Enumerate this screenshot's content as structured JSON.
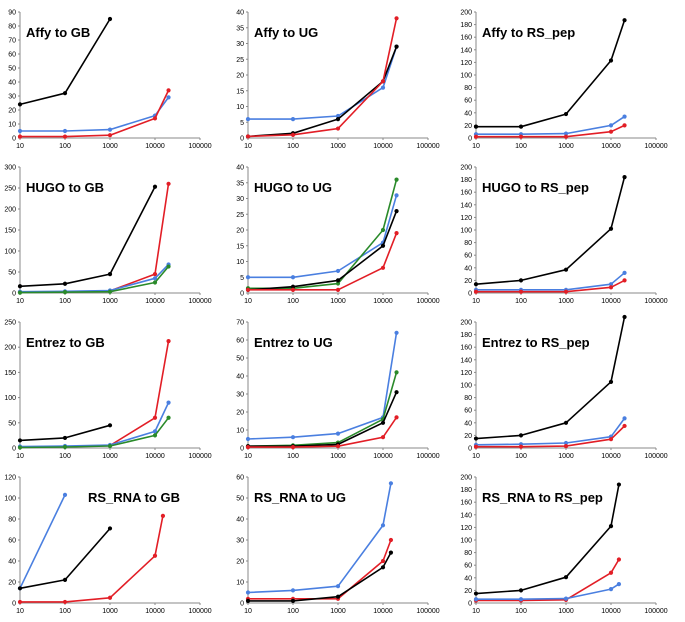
{
  "colors": {
    "black": "#000000",
    "blue": "#4a7fe0",
    "red": "#e21e26",
    "green": "#2a8a2a"
  },
  "chart_data": [
    {
      "type": "line",
      "title": "Affy to GB",
      "xscale": "log",
      "xlim": [
        10,
        100000
      ],
      "ylim": [
        0,
        90
      ],
      "xticks": [
        "10",
        "100",
        "1000",
        "10000",
        "100000"
      ],
      "yticks": [
        "0",
        "10",
        "20",
        "30",
        "40",
        "50",
        "60",
        "70",
        "80",
        "90"
      ],
      "title_pos": "top-left",
      "series": [
        {
          "name": "black",
          "color": "#000000",
          "x": [
            10,
            100,
            1000
          ],
          "y": [
            24,
            32,
            85
          ]
        },
        {
          "name": "blue",
          "color": "#4a7fe0",
          "x": [
            10,
            100,
            1000,
            10000,
            20000
          ],
          "y": [
            5,
            5,
            6,
            16,
            29
          ]
        },
        {
          "name": "red",
          "color": "#e21e26",
          "x": [
            10,
            100,
            1000,
            10000,
            20000
          ],
          "y": [
            1,
            1,
            2,
            14,
            34
          ]
        }
      ]
    },
    {
      "type": "line",
      "title": "Affy to UG",
      "xscale": "log",
      "xlim": [
        10,
        100000
      ],
      "ylim": [
        0,
        40
      ],
      "xticks": [
        "10",
        "100",
        "1000",
        "10000",
        "100000"
      ],
      "yticks": [
        "0",
        "5",
        "10",
        "15",
        "20",
        "25",
        "30",
        "35",
        "40"
      ],
      "title_pos": "top-left",
      "series": [
        {
          "name": "blue",
          "color": "#4a7fe0",
          "x": [
            10,
            100,
            1000,
            10000,
            20000
          ],
          "y": [
            6,
            6,
            7,
            16,
            29
          ]
        },
        {
          "name": "black",
          "color": "#000000",
          "x": [
            10,
            100,
            1000,
            10000,
            20000
          ],
          "y": [
            0.5,
            1.5,
            6,
            18,
            29
          ]
        },
        {
          "name": "red",
          "color": "#e21e26",
          "x": [
            10,
            100,
            1000,
            10000,
            20000
          ],
          "y": [
            0.5,
            1,
            3,
            18,
            38
          ]
        }
      ]
    },
    {
      "type": "line",
      "title": "Affy to RS_pep",
      "xscale": "log",
      "xlim": [
        10,
        100000
      ],
      "ylim": [
        0,
        200
      ],
      "xticks": [
        "10",
        "100",
        "1000",
        "10000",
        "100000"
      ],
      "yticks": [
        "0",
        "20",
        "40",
        "60",
        "80",
        "100",
        "120",
        "140",
        "160",
        "180",
        "200"
      ],
      "title_pos": "top-left",
      "series": [
        {
          "name": "black",
          "color": "#000000",
          "x": [
            10,
            100,
            1000,
            10000,
            20000
          ],
          "y": [
            18,
            18,
            38,
            123,
            187
          ]
        },
        {
          "name": "blue",
          "color": "#4a7fe0",
          "x": [
            10,
            100,
            1000,
            10000,
            20000
          ],
          "y": [
            6,
            6,
            7,
            20,
            34
          ]
        },
        {
          "name": "red",
          "color": "#e21e26",
          "x": [
            10,
            100,
            1000,
            10000,
            20000
          ],
          "y": [
            2,
            2,
            2,
            10,
            20
          ]
        }
      ]
    },
    {
      "type": "line",
      "title": "HUGO to GB",
      "xscale": "log",
      "xlim": [
        10,
        100000
      ],
      "ylim": [
        0,
        300
      ],
      "xticks": [
        "10",
        "100",
        "1000",
        "10000",
        "100000"
      ],
      "yticks": [
        "0",
        "50",
        "100",
        "150",
        "200",
        "250",
        "300"
      ],
      "title_pos": "top-left",
      "series": [
        {
          "name": "black",
          "color": "#000000",
          "x": [
            10,
            100,
            1000,
            10000
          ],
          "y": [
            16,
            22,
            45,
            253
          ]
        },
        {
          "name": "red",
          "color": "#e21e26",
          "x": [
            10,
            100,
            1000,
            10000,
            20000
          ],
          "y": [
            2,
            3,
            5,
            45,
            260
          ]
        },
        {
          "name": "blue",
          "color": "#4a7fe0",
          "x": [
            10,
            100,
            1000,
            10000,
            20000
          ],
          "y": [
            3,
            4,
            6,
            35,
            68
          ]
        },
        {
          "name": "green",
          "color": "#2a8a2a",
          "x": [
            10,
            100,
            1000,
            10000,
            20000
          ],
          "y": [
            1,
            2,
            3,
            25,
            63
          ]
        }
      ]
    },
    {
      "type": "line",
      "title": "HUGO to UG",
      "xscale": "log",
      "xlim": [
        10,
        100000
      ],
      "ylim": [
        0,
        40
      ],
      "xticks": [
        "10",
        "100",
        "1000",
        "10000",
        "100000"
      ],
      "yticks": [
        "0",
        "5",
        "10",
        "15",
        "20",
        "25",
        "30",
        "35",
        "40"
      ],
      "title_pos": "top-left",
      "series": [
        {
          "name": "blue",
          "color": "#4a7fe0",
          "x": [
            10,
            100,
            1000,
            10000,
            20000
          ],
          "y": [
            5,
            5,
            7,
            16,
            31
          ]
        },
        {
          "name": "green",
          "color": "#2a8a2a",
          "x": [
            10,
            100,
            1000,
            10000,
            20000
          ],
          "y": [
            1.5,
            1.5,
            3,
            20,
            36
          ]
        },
        {
          "name": "black",
          "color": "#000000",
          "x": [
            10,
            100,
            1000,
            10000,
            20000
          ],
          "y": [
            1,
            2,
            4,
            15,
            26
          ]
        },
        {
          "name": "red",
          "color": "#e21e26",
          "x": [
            10,
            100,
            1000,
            10000,
            20000
          ],
          "y": [
            1,
            1,
            1,
            8,
            19
          ]
        }
      ]
    },
    {
      "type": "line",
      "title": "HUGO to RS_pep",
      "xscale": "log",
      "xlim": [
        10,
        100000
      ],
      "ylim": [
        0,
        200
      ],
      "xticks": [
        "10",
        "100",
        "1000",
        "10000",
        "100000"
      ],
      "yticks": [
        "0",
        "20",
        "40",
        "60",
        "80",
        "100",
        "120",
        "140",
        "160",
        "180",
        "200"
      ],
      "title_pos": "top-left",
      "series": [
        {
          "name": "black",
          "color": "#000000",
          "x": [
            10,
            100,
            1000,
            10000,
            20000
          ],
          "y": [
            14,
            20,
            37,
            102,
            184
          ]
        },
        {
          "name": "blue",
          "color": "#4a7fe0",
          "x": [
            10,
            100,
            1000,
            10000,
            20000
          ],
          "y": [
            5,
            5,
            5,
            14,
            32
          ]
        },
        {
          "name": "red",
          "color": "#e21e26",
          "x": [
            10,
            100,
            1000,
            10000,
            20000
          ],
          "y": [
            2,
            2,
            2,
            9,
            20
          ]
        }
      ]
    },
    {
      "type": "line",
      "title": "Entrez to GB",
      "xscale": "log",
      "xlim": [
        10,
        100000
      ],
      "ylim": [
        0,
        250
      ],
      "xticks": [
        "10",
        "100",
        "1000",
        "10000",
        "100000"
      ],
      "yticks": [
        "0",
        "50",
        "100",
        "150",
        "200",
        "250"
      ],
      "title_pos": "top-left",
      "series": [
        {
          "name": "black",
          "color": "#000000",
          "x": [
            10,
            100,
            1000
          ],
          "y": [
            15,
            20,
            45
          ]
        },
        {
          "name": "red",
          "color": "#e21e26",
          "x": [
            10,
            100,
            1000,
            10000,
            20000
          ],
          "y": [
            2,
            3,
            5,
            60,
            212
          ]
        },
        {
          "name": "blue",
          "color": "#4a7fe0",
          "x": [
            10,
            100,
            1000,
            10000,
            20000
          ],
          "y": [
            3,
            4,
            6,
            33,
            90
          ]
        },
        {
          "name": "green",
          "color": "#2a8a2a",
          "x": [
            10,
            100,
            1000,
            10000,
            20000
          ],
          "y": [
            1,
            2,
            4,
            25,
            60
          ]
        }
      ]
    },
    {
      "type": "line",
      "title": "Entrez to UG",
      "xscale": "log",
      "xlim": [
        10,
        100000
      ],
      "ylim": [
        0,
        70
      ],
      "xticks": [
        "10",
        "100",
        "1000",
        "10000",
        "100000"
      ],
      "yticks": [
        "0",
        "10",
        "20",
        "30",
        "40",
        "50",
        "60",
        "70"
      ],
      "title_pos": "top-left",
      "series": [
        {
          "name": "blue",
          "color": "#4a7fe0",
          "x": [
            10,
            100,
            1000,
            10000,
            20000
          ],
          "y": [
            5,
            6,
            8,
            17,
            64
          ]
        },
        {
          "name": "green",
          "color": "#2a8a2a",
          "x": [
            10,
            100,
            1000,
            10000,
            20000
          ],
          "y": [
            1,
            1.5,
            3,
            16,
            42
          ]
        },
        {
          "name": "black",
          "color": "#000000",
          "x": [
            10,
            100,
            1000,
            10000,
            20000
          ],
          "y": [
            1,
            1,
            2,
            14,
            31
          ]
        },
        {
          "name": "red",
          "color": "#e21e26",
          "x": [
            10,
            100,
            1000,
            10000,
            20000
          ],
          "y": [
            0.5,
            0.5,
            1,
            6,
            17
          ]
        }
      ]
    },
    {
      "type": "line",
      "title": "Entrez to RS_pep",
      "xscale": "log",
      "xlim": [
        10,
        100000
      ],
      "ylim": [
        0,
        200
      ],
      "xticks": [
        "10",
        "100",
        "1000",
        "10000",
        "100000"
      ],
      "yticks": [
        "0",
        "20",
        "40",
        "60",
        "80",
        "100",
        "120",
        "140",
        "160",
        "180",
        "200"
      ],
      "title_pos": "top-left",
      "series": [
        {
          "name": "black",
          "color": "#000000",
          "x": [
            10,
            100,
            1000,
            10000,
            20000
          ],
          "y": [
            15,
            20,
            40,
            105,
            208
          ]
        },
        {
          "name": "blue",
          "color": "#4a7fe0",
          "x": [
            10,
            100,
            1000,
            10000,
            20000
          ],
          "y": [
            5,
            6,
            8,
            18,
            47
          ]
        },
        {
          "name": "red",
          "color": "#e21e26",
          "x": [
            10,
            100,
            1000,
            10000,
            20000
          ],
          "y": [
            2,
            2,
            3,
            14,
            35
          ]
        }
      ]
    },
    {
      "type": "line",
      "title": "RS_RNA to GB",
      "xscale": "log",
      "xlim": [
        10,
        100000
      ],
      "ylim": [
        0,
        120
      ],
      "xticks": [
        "10",
        "100",
        "1000",
        "10000",
        "100000"
      ],
      "yticks": [
        "0",
        "20",
        "40",
        "60",
        "80",
        "100",
        "120"
      ],
      "title_pos": "top-center",
      "series": [
        {
          "name": "blue",
          "color": "#4a7fe0",
          "x": [
            10,
            100
          ],
          "y": [
            14,
            103
          ]
        },
        {
          "name": "black",
          "color": "#000000",
          "x": [
            10,
            100,
            1000
          ],
          "y": [
            14,
            22,
            71
          ]
        },
        {
          "name": "red",
          "color": "#e21e26",
          "x": [
            10,
            100,
            1000,
            10000,
            15000
          ],
          "y": [
            1,
            1,
            5,
            45,
            83
          ]
        }
      ]
    },
    {
      "type": "line",
      "title": "RS_RNA to UG",
      "xscale": "log",
      "xlim": [
        10,
        100000
      ],
      "ylim": [
        0,
        60
      ],
      "xticks": [
        "10",
        "100",
        "1000",
        "10000",
        "100000"
      ],
      "yticks": [
        "0",
        "10",
        "20",
        "30",
        "40",
        "50",
        "60"
      ],
      "title_pos": "top-left",
      "series": [
        {
          "name": "blue",
          "color": "#4a7fe0",
          "x": [
            10,
            100,
            1000,
            10000,
            15000
          ],
          "y": [
            5,
            6,
            8,
            37,
            57
          ]
        },
        {
          "name": "red",
          "color": "#e21e26",
          "x": [
            10,
            100,
            1000,
            10000,
            15000
          ],
          "y": [
            2,
            2,
            2,
            20,
            30
          ]
        },
        {
          "name": "black",
          "color": "#000000",
          "x": [
            10,
            100,
            1000,
            10000,
            15000
          ],
          "y": [
            1,
            1,
            3,
            17,
            24
          ]
        }
      ]
    },
    {
      "type": "line",
      "title": "RS_RNA to RS_pep",
      "xscale": "log",
      "xlim": [
        10,
        100000
      ],
      "ylim": [
        0,
        200
      ],
      "xticks": [
        "10",
        "100",
        "1000",
        "10000",
        "100000"
      ],
      "yticks": [
        "0",
        "20",
        "40",
        "60",
        "80",
        "100",
        "120",
        "140",
        "160",
        "180",
        "200"
      ],
      "title_pos": "top-left",
      "series": [
        {
          "name": "black",
          "color": "#000000",
          "x": [
            10,
            100,
            1000,
            10000,
            15000
          ],
          "y": [
            15,
            20,
            41,
            122,
            188
          ]
        },
        {
          "name": "red",
          "color": "#e21e26",
          "x": [
            10,
            100,
            1000,
            10000,
            15000
          ],
          "y": [
            4,
            4,
            5,
            48,
            69
          ]
        },
        {
          "name": "blue",
          "color": "#4a7fe0",
          "x": [
            10,
            100,
            1000,
            10000,
            15000
          ],
          "y": [
            6,
            6,
            7,
            22,
            30
          ]
        }
      ]
    }
  ]
}
